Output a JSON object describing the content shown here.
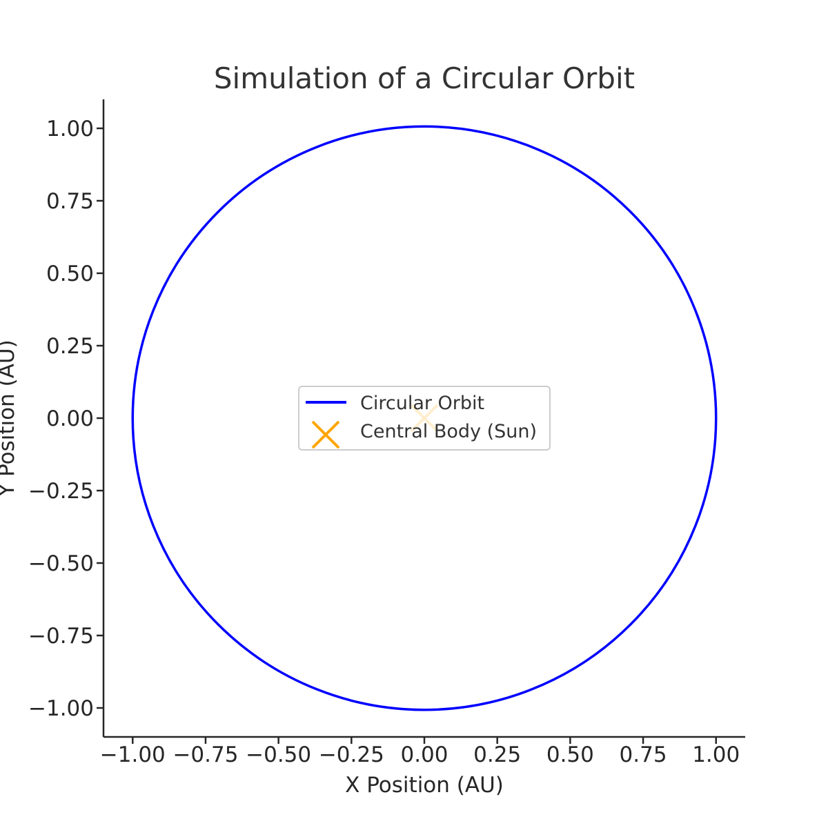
{
  "chart_data": {
    "type": "line",
    "title": "Simulation of a Circular Orbit",
    "xlabel": "X Position (AU)",
    "ylabel": "Y Position (AU)",
    "xlim": [
      -1.1,
      1.1
    ],
    "ylim": [
      -1.1,
      1.1
    ],
    "x_ticks": [
      -1.0,
      -0.75,
      -0.5,
      -0.25,
      0.0,
      0.25,
      0.5,
      0.75,
      1.0
    ],
    "x_tick_labels": [
      "−1.00",
      "−0.75",
      "−0.50",
      "−0.25",
      "0.00",
      "0.25",
      "0.50",
      "0.75",
      "1.00"
    ],
    "y_ticks": [
      1.0,
      0.75,
      0.5,
      0.25,
      0.0,
      -0.25,
      -0.5,
      -0.75,
      -1.0
    ],
    "y_tick_labels": [
      "1.00",
      "0.75",
      "0.50",
      "0.25",
      "0.00",
      "−0.25",
      "−0.50",
      "−0.75",
      "−1.00"
    ],
    "grid": false,
    "legend_position": "center",
    "series": [
      {
        "name": "Circular Orbit",
        "kind": "line",
        "shape": "circle",
        "center": [
          0,
          0
        ],
        "radius": 1.0,
        "color": "#0000ff"
      },
      {
        "name": "Central Body (Sun)",
        "kind": "marker",
        "marker": "x",
        "x": [
          0.0
        ],
        "y": [
          0.0
        ],
        "color": "#ffa500"
      }
    ]
  }
}
